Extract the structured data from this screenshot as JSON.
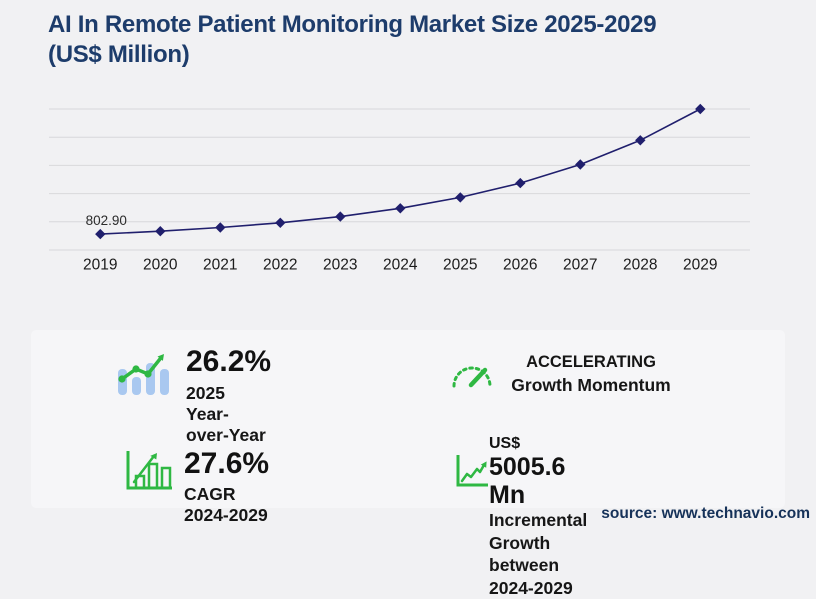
{
  "header": {
    "title_line1": "AI In Remote Patient Monitoring Market Size 2025-2029",
    "title_line2": "(US$ Million)"
  },
  "chart_data": {
    "type": "line",
    "title": "AI In Remote Patient Monitoring Market Size 2025-2029 (US$ Million)",
    "x": [
      "2019",
      "2020",
      "2021",
      "2022",
      "2023",
      "2024",
      "2025",
      "2026",
      "2027",
      "2028",
      "2029"
    ],
    "series": [
      {
        "name": "Market size (US$ Million)",
        "values": [
          802.9,
          947.4,
          1132.1,
          1369.9,
          1685.0,
          2100.9,
          2651.3,
          3372.5,
          4310.0,
          5529.7,
          7106.5
        ]
      }
    ],
    "annotation": {
      "text": "802.90",
      "index": 0
    },
    "ylim": [
      0,
      7106.5
    ],
    "gridline_count": 6,
    "grid": true,
    "legend": false,
    "marker": "diamond",
    "colors": {
      "line": "#201f6d",
      "grid": "#d8d8db",
      "axis_labels": "#1b1b1b",
      "annotation": "#2b2b2b"
    }
  },
  "stats": [
    {
      "icon": "bar-chart-trend-icon",
      "value": "26.2%",
      "label": "2025 Year-over-Year"
    },
    {
      "icon": "speedometer-icon",
      "value": "ACCELERATING",
      "label": "Growth Momentum"
    },
    {
      "icon": "growth-bars-icon",
      "value": "27.6%",
      "label": "CAGR 2024-2029"
    },
    {
      "icon": "line-growth-icon",
      "currency": "US$",
      "value": "5005.6 Mn",
      "label_line1": "Incremental Growth",
      "label_line2": "between 2024-2029"
    }
  ],
  "footer": {
    "source": "source: www.technavio.com"
  },
  "palette": {
    "page_bg": "#f1f1f3",
    "panel_bg": "#f6f6f8",
    "title_navy": "#1d3c6b",
    "source_navy": "#163259",
    "green": "#2fb843",
    "light_blue": "#a9c8f0"
  }
}
